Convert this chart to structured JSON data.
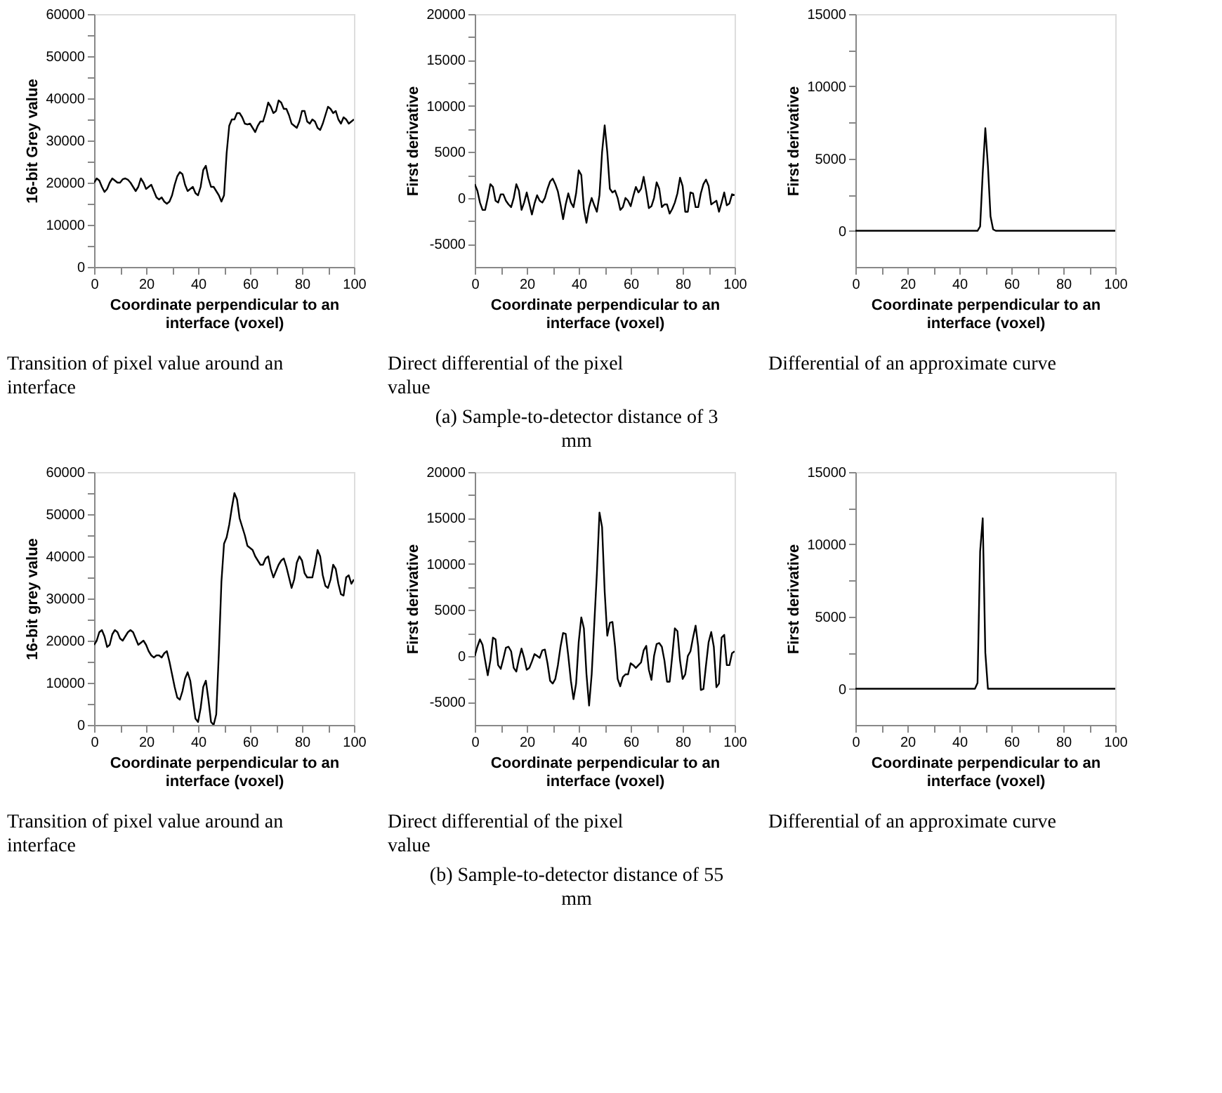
{
  "chart_data": [
    {
      "type": "line",
      "xlabel": "Coordinate perpendicular to an interface (voxel)",
      "ylabel": "16-bit  Grey value",
      "color": "#000000",
      "x": [
        0,
        1,
        2,
        3,
        4,
        5,
        6,
        7,
        8,
        9,
        10,
        11,
        12,
        13,
        14,
        15,
        16,
        17,
        18,
        19,
        20,
        21,
        22,
        23,
        24,
        25,
        26,
        27,
        28,
        29,
        30,
        31,
        32,
        33,
        34,
        35,
        36,
        37,
        38,
        39,
        40,
        41,
        42,
        43,
        44,
        45,
        46,
        47,
        48,
        49,
        50,
        51,
        52,
        53,
        54,
        55,
        56,
        57,
        58,
        59,
        60,
        61,
        62,
        63,
        64,
        65,
        66,
        67,
        68,
        69,
        70,
        71,
        72,
        73,
        74,
        75,
        76,
        77,
        78,
        79,
        80,
        81,
        82,
        83,
        84,
        85,
        86,
        87,
        88,
        89,
        90,
        91,
        92,
        93,
        94,
        95,
        96,
        97,
        98,
        99,
        100
      ],
      "values": [
        20000,
        21000,
        20500,
        19000,
        17800,
        18500,
        20000,
        21000,
        20500,
        20000,
        20000,
        20800,
        21000,
        20700,
        20000,
        19000,
        18000,
        19000,
        21000,
        20000,
        18500,
        19000,
        19500,
        18000,
        16500,
        16000,
        16500,
        15500,
        15000,
        15500,
        17000,
        19500,
        21500,
        22500,
        22000,
        19500,
        18000,
        18500,
        19000,
        17500,
        17000,
        19000,
        23000,
        24000,
        21000,
        19000,
        19000,
        18000,
        17000,
        15500,
        17000,
        27000,
        33500,
        35000,
        35000,
        36500,
        36500,
        35500,
        34000,
        33800,
        34000,
        33000,
        32000,
        33500,
        34500,
        34500,
        36500,
        39000,
        38000,
        36500,
        37000,
        39500,
        39000,
        37500,
        37500,
        36000,
        34000,
        33500,
        33000,
        34500,
        37000,
        37000,
        34500,
        34000,
        35000,
        34500,
        33000,
        32500,
        34000,
        36000,
        38000,
        37500,
        36500,
        37000,
        35000,
        34000,
        35500,
        35000,
        34000,
        34500,
        35000
      ],
      "xlim": [
        0,
        100
      ],
      "ylim": [
        0,
        60000
      ],
      "xticks": [
        0,
        {
          "value": 10,
          "label": null
        },
        20,
        {
          "value": 30,
          "label": null
        },
        40,
        {
          "value": 50,
          "label": null
        },
        60,
        {
          "value": 70,
          "label": null
        },
        80,
        {
          "value": 90,
          "label": null
        },
        100
      ],
      "yticks": [
        0,
        {
          "value": 5000,
          "label": null
        },
        10000,
        {
          "value": 15000,
          "label": null
        },
        20000,
        {
          "value": 25000,
          "label": null
        },
        30000,
        {
          "value": 35000,
          "label": null
        },
        40000,
        {
          "value": 45000,
          "label": null
        },
        50000,
        {
          "value": 55000,
          "label": null
        },
        60000
      ],
      "annotations": [
        "Transition of pixel value around an interface"
      ]
    },
    {
      "type": "line",
      "xlabel": "Coordinate perpendicular to an interface (voxel)",
      "ylabel": "First derivative",
      "color": "#000000",
      "x": [
        0,
        1,
        2,
        3,
        4,
        5,
        6,
        7,
        8,
        9,
        10,
        11,
        12,
        13,
        14,
        15,
        16,
        17,
        18,
        19,
        20,
        21,
        22,
        23,
        24,
        25,
        26,
        27,
        28,
        29,
        30,
        31,
        32,
        33,
        34,
        35,
        36,
        37,
        38,
        39,
        40,
        41,
        42,
        43,
        44,
        45,
        46,
        47,
        48,
        49,
        50,
        51,
        52,
        53,
        54,
        55,
        56,
        57,
        58,
        59,
        60,
        61,
        62,
        63,
        64,
        65,
        66,
        67,
        68,
        69,
        70,
        71,
        72,
        73,
        74,
        75,
        76,
        77,
        78,
        79,
        80,
        81,
        82,
        83,
        84,
        85,
        86,
        87,
        88,
        89,
        90,
        91,
        92,
        93,
        94,
        95,
        96,
        97,
        98,
        99,
        100
      ],
      "values": [
        1500,
        800,
        -500,
        -1300,
        -1300,
        0,
        1500,
        1200,
        -300,
        -500,
        400,
        400,
        -300,
        -700,
        -1000,
        0,
        1500,
        800,
        -1300,
        -500,
        600,
        -600,
        -1800,
        -600,
        300,
        -300,
        -500,
        0,
        1000,
        1800,
        2100,
        1500,
        700,
        -700,
        -2300,
        -700,
        500,
        -500,
        -1000,
        500,
        3000,
        2500,
        -1200,
        -2700,
        -1000,
        0,
        -800,
        -1500,
        300,
        5000,
        7900,
        5000,
        1000,
        600,
        800,
        0,
        -1300,
        -1000,
        0,
        -300,
        -900,
        200,
        1200,
        600,
        1000,
        2300,
        700,
        -1100,
        -900,
        0,
        1700,
        1000,
        -1000,
        -700,
        -700,
        -1700,
        -1200,
        -500,
        500,
        2200,
        1300,
        -1500,
        -1500,
        600,
        500,
        -1000,
        -1000,
        500,
        1500,
        2000,
        1300,
        -700,
        -500,
        -300,
        -1500,
        -500,
        600,
        -800,
        -600,
        400,
        300
      ],
      "xlim": [
        0,
        100
      ],
      "ylim": [
        -7500,
        20000
      ],
      "xticks": [
        0,
        {
          "value": 10,
          "label": null
        },
        20,
        {
          "value": 30,
          "label": null
        },
        40,
        {
          "value": 50,
          "label": null
        },
        60,
        {
          "value": 70,
          "label": null
        },
        80,
        {
          "value": 90,
          "label": null
        },
        100
      ],
      "yticks": [
        -5000,
        {
          "value": -2500,
          "label": null
        },
        0,
        {
          "value": 2500,
          "label": null
        },
        5000,
        {
          "value": 7500,
          "label": null
        },
        10000,
        {
          "value": 12500,
          "label": null
        },
        15000,
        {
          "value": 17500,
          "label": null
        },
        20000
      ],
      "annotations": [
        "Direct differential of the pixel value",
        "(a) Sample-to-detector distance of 3 mm"
      ]
    },
    {
      "type": "line",
      "xlabel": "Coordinate perpendicular to an interface (voxel)",
      "ylabel": "First derivative",
      "color": "#000000",
      "x": [
        0,
        47,
        48,
        49,
        50,
        51,
        52,
        53,
        54,
        100
      ],
      "values": [
        0,
        0,
        300,
        4000,
        7100,
        4500,
        1000,
        100,
        0,
        0
      ],
      "xlim": [
        0,
        100
      ],
      "ylim": [
        -2500,
        15000
      ],
      "xticks": [
        0,
        {
          "value": 10,
          "label": null
        },
        20,
        {
          "value": 30,
          "label": null
        },
        40,
        {
          "value": 50,
          "label": null
        },
        60,
        {
          "value": 70,
          "label": null
        },
        80,
        {
          "value": 90,
          "label": null
        },
        100
      ],
      "yticks": [
        0,
        {
          "value": 2500,
          "label": null
        },
        5000,
        {
          "value": 7500,
          "label": null
        },
        10000,
        {
          "value": 12500,
          "label": null
        },
        15000
      ],
      "annotations": [
        "Differential of an approximate curve"
      ]
    },
    {
      "type": "line",
      "xlabel": "Coordinate perpendicular to an interface (voxel)",
      "ylabel": "16-bit grey value",
      "color": "#000000",
      "x": [
        0,
        1,
        2,
        3,
        4,
        5,
        6,
        7,
        8,
        9,
        10,
        11,
        12,
        13,
        14,
        15,
        16,
        17,
        18,
        19,
        20,
        21,
        22,
        23,
        24,
        25,
        26,
        27,
        28,
        29,
        30,
        31,
        32,
        33,
        34,
        35,
        36,
        37,
        38,
        39,
        40,
        41,
        42,
        43,
        44,
        45,
        46,
        47,
        48,
        49,
        50,
        51,
        52,
        53,
        54,
        55,
        56,
        57,
        58,
        59,
        60,
        61,
        62,
        63,
        64,
        65,
        66,
        67,
        68,
        69,
        70,
        71,
        72,
        73,
        74,
        75,
        76,
        77,
        78,
        79,
        80,
        81,
        82,
        83,
        84,
        85,
        86,
        87,
        88,
        89,
        90,
        91,
        92,
        93,
        94,
        95,
        96,
        97,
        98,
        99,
        100
      ],
      "values": [
        19000,
        20000,
        22000,
        22500,
        21000,
        18500,
        19000,
        21500,
        22500,
        22000,
        20500,
        20000,
        21000,
        22000,
        22500,
        22000,
        20500,
        19000,
        19500,
        20000,
        19000,
        17500,
        16500,
        16000,
        16500,
        16500,
        16000,
        17000,
        17500,
        15000,
        12000,
        9000,
        6500,
        6000,
        8000,
        11000,
        12500,
        10500,
        6000,
        1500,
        700,
        4000,
        9000,
        10500,
        6000,
        700,
        0,
        2500,
        17000,
        34000,
        43000,
        44500,
        47500,
        51500,
        55000,
        53500,
        49000,
        47000,
        45000,
        42500,
        42000,
        41500,
        40000,
        39000,
        38000,
        38000,
        39500,
        40000,
        37000,
        35000,
        36500,
        38000,
        39000,
        39500,
        37500,
        35000,
        32500,
        34500,
        38500,
        40000,
        39000,
        36000,
        35000,
        35000,
        35000,
        38000,
        41500,
        40000,
        35500,
        33000,
        32500,
        34500,
        38000,
        37000,
        33500,
        31000,
        30700,
        35000,
        35500,
        33500,
        34500
      ],
      "xlim": [
        0,
        100
      ],
      "ylim": [
        0,
        60000
      ],
      "xticks": [
        0,
        {
          "value": 10,
          "label": null
        },
        20,
        {
          "value": 30,
          "label": null
        },
        40,
        {
          "value": 50,
          "label": null
        },
        60,
        {
          "value": 70,
          "label": null
        },
        80,
        {
          "value": 90,
          "label": null
        },
        100
      ],
      "yticks": [
        0,
        {
          "value": 5000,
          "label": null
        },
        10000,
        {
          "value": 15000,
          "label": null
        },
        20000,
        {
          "value": 25000,
          "label": null
        },
        30000,
        {
          "value": 35000,
          "label": null
        },
        40000,
        {
          "value": 45000,
          "label": null
        },
        50000,
        {
          "value": 55000,
          "label": null
        },
        60000
      ],
      "annotations": [
        "Transition of pixel value around an interface"
      ]
    },
    {
      "type": "line",
      "xlabel": "Coordinate perpendicular to an interface (voxel)",
      "ylabel": "First derivative",
      "color": "#000000",
      "x": [
        0,
        1,
        2,
        3,
        4,
        5,
        6,
        7,
        8,
        9,
        10,
        11,
        12,
        13,
        14,
        15,
        16,
        17,
        18,
        19,
        20,
        21,
        22,
        23,
        24,
        25,
        26,
        27,
        28,
        29,
        30,
        31,
        32,
        33,
        34,
        35,
        36,
        37,
        38,
        39,
        40,
        41,
        42,
        43,
        44,
        45,
        46,
        47,
        48,
        49,
        50,
        51,
        52,
        53,
        54,
        55,
        56,
        57,
        58,
        59,
        60,
        61,
        62,
        63,
        64,
        65,
        66,
        67,
        68,
        69,
        70,
        71,
        72,
        73,
        74,
        75,
        76,
        77,
        78,
        79,
        80,
        81,
        82,
        83,
        84,
        85,
        86,
        87,
        88,
        89,
        90,
        91,
        92,
        93,
        94,
        95,
        96,
        97,
        98,
        99,
        100
      ],
      "values": [
        0,
        1000,
        1800,
        1200,
        -500,
        -2100,
        -500,
        2000,
        1800,
        -1000,
        -1400,
        -300,
        900,
        1000,
        500,
        -1300,
        -1700,
        -300,
        800,
        -200,
        -1500,
        -1300,
        -600,
        200,
        0,
        -200,
        600,
        700,
        -800,
        -2700,
        -3000,
        -2500,
        -1000,
        1000,
        2500,
        2400,
        0,
        -2700,
        -4700,
        -3000,
        1500,
        4200,
        3000,
        -2000,
        -5400,
        -2000,
        3500,
        9000,
        15600,
        14000,
        7000,
        2200,
        3600,
        3700,
        1000,
        -2500,
        -3300,
        -2300,
        -2000,
        -2000,
        -800,
        -1000,
        -1300,
        -1000,
        -700,
        600,
        1100,
        -1500,
        -2600,
        0,
        1300,
        1400,
        1000,
        -500,
        -2800,
        -2800,
        0,
        3000,
        2700,
        -500,
        -2500,
        -2000,
        0,
        500,
        2000,
        3300,
        1000,
        -3700,
        -3600,
        -1000,
        1500,
        2600,
        1000,
        -3400,
        -3000,
        2000,
        2300,
        -1000,
        -1000,
        300,
        500
      ],
      "xlim": [
        0,
        100
      ],
      "ylim": [
        -7500,
        20000
      ],
      "xticks": [
        0,
        {
          "value": 10,
          "label": null
        },
        20,
        {
          "value": 30,
          "label": null
        },
        40,
        {
          "value": 50,
          "label": null
        },
        60,
        {
          "value": 70,
          "label": null
        },
        80,
        {
          "value": 90,
          "label": null
        },
        100
      ],
      "yticks": [
        -5000,
        {
          "value": -2500,
          "label": null
        },
        0,
        {
          "value": 2500,
          "label": null
        },
        5000,
        {
          "value": 7500,
          "label": null
        },
        10000,
        {
          "value": 12500,
          "label": null
        },
        15000,
        {
          "value": 17500,
          "label": null
        },
        20000
      ],
      "annotations": [
        "Direct differential of the pixel value",
        "(b) Sample-to-detector distance of 55 mm"
      ]
    },
    {
      "type": "line",
      "xlabel": "Coordinate perpendicular to an interface (voxel)",
      "ylabel": "First derivative",
      "color": "#000000",
      "x": [
        0,
        46,
        47,
        48,
        49,
        50,
        51,
        100
      ],
      "values": [
        0,
        0,
        400,
        9500,
        11800,
        2500,
        0,
        0
      ],
      "xlim": [
        0,
        100
      ],
      "ylim": [
        -2500,
        15000
      ],
      "xticks": [
        0,
        {
          "value": 10,
          "label": null
        },
        20,
        {
          "value": 30,
          "label": null
        },
        40,
        {
          "value": 50,
          "label": null
        },
        60,
        {
          "value": 70,
          "label": null
        },
        80,
        {
          "value": 90,
          "label": null
        },
        100
      ],
      "yticks": [
        0,
        {
          "value": 2500,
          "label": null
        },
        5000,
        {
          "value": 7500,
          "label": null
        },
        10000,
        {
          "value": 12500,
          "label": null
        },
        15000
      ],
      "annotations": [
        "Differential of an approximate curve"
      ]
    }
  ]
}
